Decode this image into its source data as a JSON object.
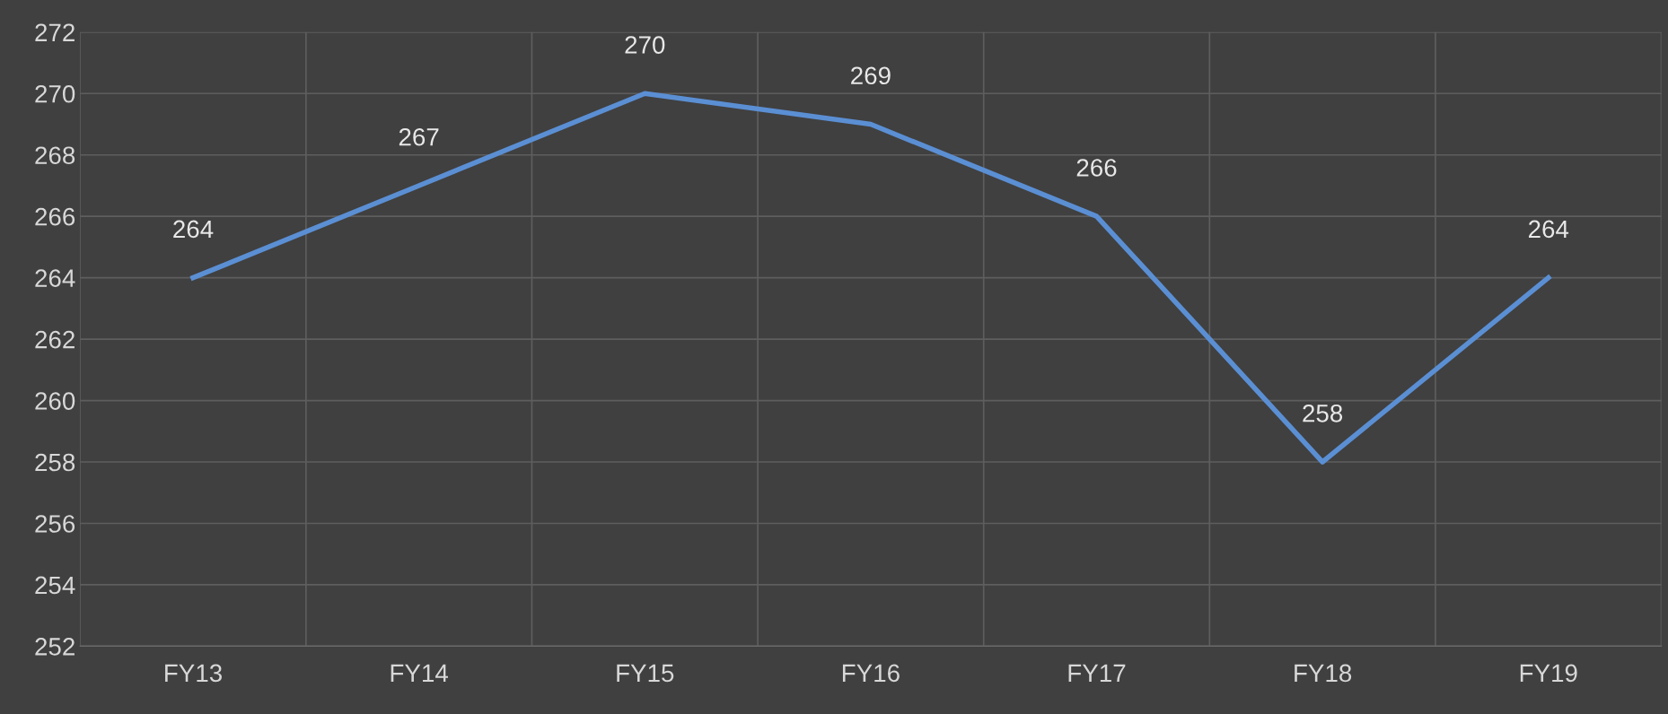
{
  "chart_data": {
    "type": "line",
    "categories": [
      "FY13",
      "FY14",
      "FY15",
      "FY16",
      "FY17",
      "FY18",
      "FY19"
    ],
    "series": [
      {
        "color": "#5b8fd4",
        "values": [
          264,
          267,
          270,
          269,
          266,
          258,
          264
        ]
      }
    ],
    "ylim": [
      252,
      272
    ],
    "yticks": [
      252,
      254,
      256,
      258,
      260,
      262,
      264,
      266,
      268,
      270,
      272
    ],
    "grid": true,
    "data_labels": true,
    "marker": "none",
    "line_style": "solid"
  }
}
